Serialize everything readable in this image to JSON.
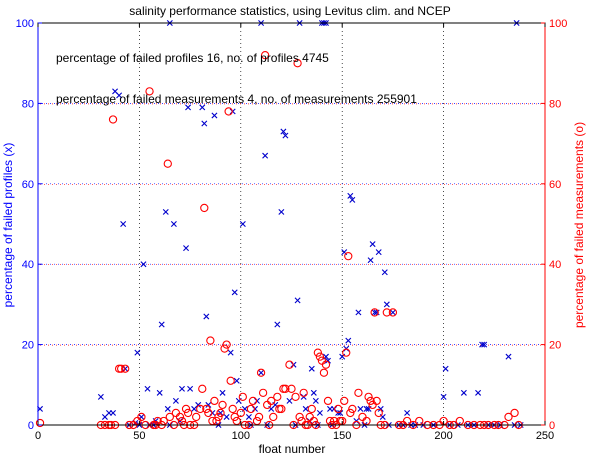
{
  "chart_data": {
    "type": "scatter",
    "title": "salinity performance statistics, using Levitus clim. and NCEP",
    "xlabel": "float number",
    "ylabel_left": "percentage of failed profiles (x)",
    "ylabel_right": "percentage of failed measurements (o)",
    "xlim": [
      0,
      250
    ],
    "ylim_left": [
      0,
      100
    ],
    "ylim_right": [
      0,
      100
    ],
    "x_ticks": [
      0,
      50,
      100,
      150,
      200,
      250
    ],
    "y_ticks_left": [
      0,
      20,
      40,
      60,
      80,
      100
    ],
    "y_ticks_right": [
      0,
      20,
      40,
      60,
      80,
      100
    ],
    "grid": true,
    "annotations": [
      "percentage of failed profiles 16, no. of profiles 4745",
      "percentage of failed measurements   4, no. of measurements 255901"
    ],
    "colors": {
      "left_axis": "#0000ff",
      "right_axis": "#ff0000",
      "profiles": "#0000cc",
      "measurements": "#ff0000",
      "grid_left": "#0000ff",
      "grid_right": "#ff0000"
    },
    "series": [
      {
        "marker": "x",
        "axis": "left",
        "points": [
          [
            1,
            4
          ],
          [
            31,
            7
          ],
          [
            33,
            2
          ],
          [
            35,
            3
          ],
          [
            37,
            3
          ],
          [
            38,
            83
          ],
          [
            40,
            82
          ],
          [
            42,
            50
          ],
          [
            43,
            14
          ],
          [
            45,
            0
          ],
          [
            48,
            0.5
          ],
          [
            49,
            18
          ],
          [
            50,
            0
          ],
          [
            51,
            2
          ],
          [
            52,
            40
          ],
          [
            54,
            9
          ],
          [
            55,
            0
          ],
          [
            57,
            0
          ],
          [
            58,
            1
          ],
          [
            60,
            8
          ],
          [
            61,
            25
          ],
          [
            63,
            53
          ],
          [
            64,
            4
          ],
          [
            65,
            0
          ],
          [
            67,
            50
          ],
          [
            68,
            6
          ],
          [
            70,
            1
          ],
          [
            71,
            9
          ],
          [
            73,
            44
          ],
          [
            74,
            79
          ],
          [
            75,
            9
          ],
          [
            77,
            4
          ],
          [
            79,
            5
          ],
          [
            81,
            79
          ],
          [
            82,
            75
          ],
          [
            83,
            27
          ],
          [
            84,
            5
          ],
          [
            86,
            3
          ],
          [
            87,
            77
          ],
          [
            89,
            0
          ],
          [
            90,
            3
          ],
          [
            91,
            8
          ],
          [
            93,
            2
          ],
          [
            95,
            18
          ],
          [
            96,
            78
          ],
          [
            97,
            33
          ],
          [
            98,
            11
          ],
          [
            99,
            6
          ],
          [
            101,
            50
          ],
          [
            102,
            4
          ],
          [
            104,
            2
          ],
          [
            105,
            0
          ],
          [
            107,
            4
          ],
          [
            108,
            6
          ],
          [
            110,
            13
          ],
          [
            112,
            67
          ],
          [
            113,
            0
          ],
          [
            115,
            4
          ],
          [
            117,
            5
          ],
          [
            118,
            25
          ],
          [
            120,
            53
          ],
          [
            121,
            73
          ],
          [
            122,
            72
          ],
          [
            124,
            6
          ],
          [
            126,
            15
          ],
          [
            127,
            0
          ],
          [
            128,
            31
          ],
          [
            129,
            100
          ],
          [
            131,
            7
          ],
          [
            132,
            4
          ],
          [
            134,
            1
          ],
          [
            135,
            14
          ],
          [
            136,
            8
          ],
          [
            137,
            6
          ],
          [
            138,
            0
          ],
          [
            139,
            3
          ],
          [
            140,
            100
          ],
          [
            141,
            100
          ],
          [
            142,
            17
          ],
          [
            143,
            16
          ],
          [
            144,
            4
          ],
          [
            145,
            0
          ],
          [
            146,
            4
          ],
          [
            148,
            3
          ],
          [
            149,
            3
          ],
          [
            150,
            17
          ],
          [
            151,
            43
          ],
          [
            152,
            19
          ],
          [
            153,
            21
          ],
          [
            154,
            57
          ],
          [
            155,
            56
          ],
          [
            157,
            1
          ],
          [
            158,
            28
          ],
          [
            159,
            4
          ],
          [
            161,
            0
          ],
          [
            162,
            4
          ],
          [
            163,
            4
          ],
          [
            164,
            41
          ],
          [
            165,
            45
          ],
          [
            166,
            28
          ],
          [
            167,
            28
          ],
          [
            168,
            43
          ],
          [
            169,
            4
          ],
          [
            170,
            2
          ],
          [
            171,
            38
          ],
          [
            172,
            30
          ],
          [
            173,
            0
          ],
          [
            175,
            28
          ],
          [
            178,
            0
          ],
          [
            180,
            0
          ],
          [
            182,
            3
          ],
          [
            184,
            0
          ],
          [
            186,
            0
          ],
          [
            190,
            0
          ],
          [
            195,
            0
          ],
          [
            200,
            7
          ],
          [
            201,
            14
          ],
          [
            203,
            0
          ],
          [
            207,
            0
          ],
          [
            210,
            8
          ],
          [
            212,
            0
          ],
          [
            215,
            0
          ],
          [
            217,
            8
          ],
          [
            219,
            20
          ],
          [
            220,
            20
          ],
          [
            222,
            0
          ],
          [
            225,
            0
          ],
          [
            228,
            0
          ],
          [
            232,
            17
          ],
          [
            235,
            0
          ],
          [
            236,
            100
          ],
          [
            238,
            0
          ],
          [
            65,
            100
          ],
          [
            110,
            100
          ],
          [
            142,
            100
          ]
        ]
      },
      {
        "marker": "o",
        "axis": "right",
        "points": [
          [
            1,
            0.5
          ],
          [
            31,
            0
          ],
          [
            33,
            0
          ],
          [
            35,
            0
          ],
          [
            36,
            0
          ],
          [
            37,
            76
          ],
          [
            38,
            0
          ],
          [
            40,
            14
          ],
          [
            41,
            14
          ],
          [
            43,
            14
          ],
          [
            45,
            0
          ],
          [
            47,
            0
          ],
          [
            49,
            1
          ],
          [
            51,
            2
          ],
          [
            53,
            0
          ],
          [
            55,
            83
          ],
          [
            57,
            0
          ],
          [
            58,
            0
          ],
          [
            59,
            1
          ],
          [
            61,
            0
          ],
          [
            62,
            1
          ],
          [
            64,
            65
          ],
          [
            65,
            2
          ],
          [
            67,
            0
          ],
          [
            68,
            3
          ],
          [
            70,
            2
          ],
          [
            71,
            1
          ],
          [
            72,
            0
          ],
          [
            73,
            4
          ],
          [
            74,
            3
          ],
          [
            75,
            0
          ],
          [
            77,
            0
          ],
          [
            78,
            2
          ],
          [
            80,
            4
          ],
          [
            81,
            9
          ],
          [
            82,
            54
          ],
          [
            83,
            4
          ],
          [
            84,
            3
          ],
          [
            85,
            21
          ],
          [
            86,
            1
          ],
          [
            87,
            6
          ],
          [
            88,
            1
          ],
          [
            89,
            2
          ],
          [
            90,
            3
          ],
          [
            91,
            5
          ],
          [
            92,
            19
          ],
          [
            93,
            20
          ],
          [
            94,
            78
          ],
          [
            95,
            11
          ],
          [
            96,
            4
          ],
          [
            97,
            2
          ],
          [
            98,
            1
          ],
          [
            100,
            3
          ],
          [
            101,
            7
          ],
          [
            102,
            0
          ],
          [
            104,
            0
          ],
          [
            105,
            4
          ],
          [
            106,
            6
          ],
          [
            108,
            1
          ],
          [
            109,
            2
          ],
          [
            110,
            13
          ],
          [
            111,
            8
          ],
          [
            112,
            92
          ],
          [
            113,
            5
          ],
          [
            114,
            0
          ],
          [
            115,
            6
          ],
          [
            116,
            2
          ],
          [
            118,
            7
          ],
          [
            119,
            4
          ],
          [
            120,
            4
          ],
          [
            121,
            9
          ],
          [
            122,
            9
          ],
          [
            124,
            15
          ],
          [
            125,
            9
          ],
          [
            126,
            0
          ],
          [
            127,
            7
          ],
          [
            128,
            90
          ],
          [
            129,
            2
          ],
          [
            130,
            1
          ],
          [
            131,
            8
          ],
          [
            132,
            0
          ],
          [
            133,
            0
          ],
          [
            134,
            2
          ],
          [
            135,
            4
          ],
          [
            136,
            1
          ],
          [
            137,
            0
          ],
          [
            138,
            18
          ],
          [
            139,
            17
          ],
          [
            140,
            16
          ],
          [
            141,
            13
          ],
          [
            142,
            15
          ],
          [
            143,
            6
          ],
          [
            144,
            1
          ],
          [
            145,
            0
          ],
          [
            146,
            1
          ],
          [
            147,
            0
          ],
          [
            148,
            4
          ],
          [
            149,
            1
          ],
          [
            150,
            1
          ],
          [
            151,
            6
          ],
          [
            152,
            18
          ],
          [
            153,
            42
          ],
          [
            154,
            3
          ],
          [
            155,
            4
          ],
          [
            157,
            0
          ],
          [
            158,
            8
          ],
          [
            160,
            2
          ],
          [
            162,
            1
          ],
          [
            163,
            7
          ],
          [
            164,
            6
          ],
          [
            165,
            5
          ],
          [
            166,
            28
          ],
          [
            167,
            6
          ],
          [
            168,
            3
          ],
          [
            169,
            0
          ],
          [
            171,
            0
          ],
          [
            172,
            28
          ],
          [
            175,
            28
          ],
          [
            178,
            0
          ],
          [
            180,
            0
          ],
          [
            182,
            1
          ],
          [
            185,
            0
          ],
          [
            188,
            1
          ],
          [
            192,
            0
          ],
          [
            195,
            0
          ],
          [
            198,
            0
          ],
          [
            200,
            1
          ],
          [
            203,
            0
          ],
          [
            205,
            0
          ],
          [
            208,
            1
          ],
          [
            212,
            0
          ],
          [
            215,
            0
          ],
          [
            218,
            0
          ],
          [
            220,
            0
          ],
          [
            222,
            0
          ],
          [
            225,
            0
          ],
          [
            227,
            0
          ],
          [
            230,
            0
          ],
          [
            232,
            2
          ],
          [
            235,
            3
          ],
          [
            237,
            0
          ]
        ]
      }
    ]
  }
}
